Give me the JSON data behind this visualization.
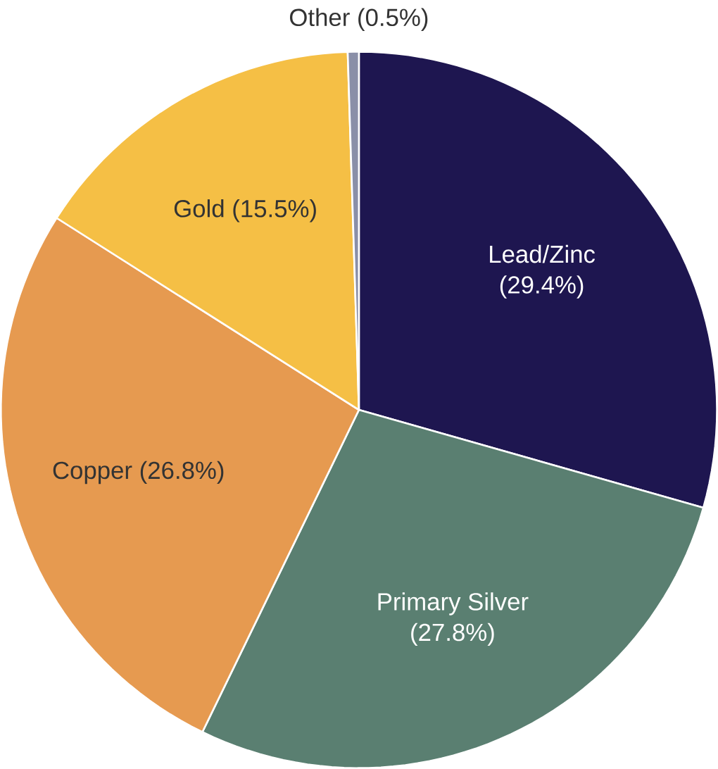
{
  "chart_data": {
    "type": "pie",
    "categories": [
      "Lead/Zinc",
      "Primary Silver",
      "Copper",
      "Gold",
      "Other"
    ],
    "values": [
      29.4,
      27.8,
      26.8,
      15.5,
      0.5
    ],
    "value_labels": [
      "(29.4%)",
      "(27.8%)",
      "(26.8%)",
      "(15.5%)",
      "(0.5%)"
    ],
    "colors": [
      "#1e1650",
      "#5a7f71",
      "#e69a50",
      "#f5bf45",
      "#8a8fa8"
    ]
  }
}
